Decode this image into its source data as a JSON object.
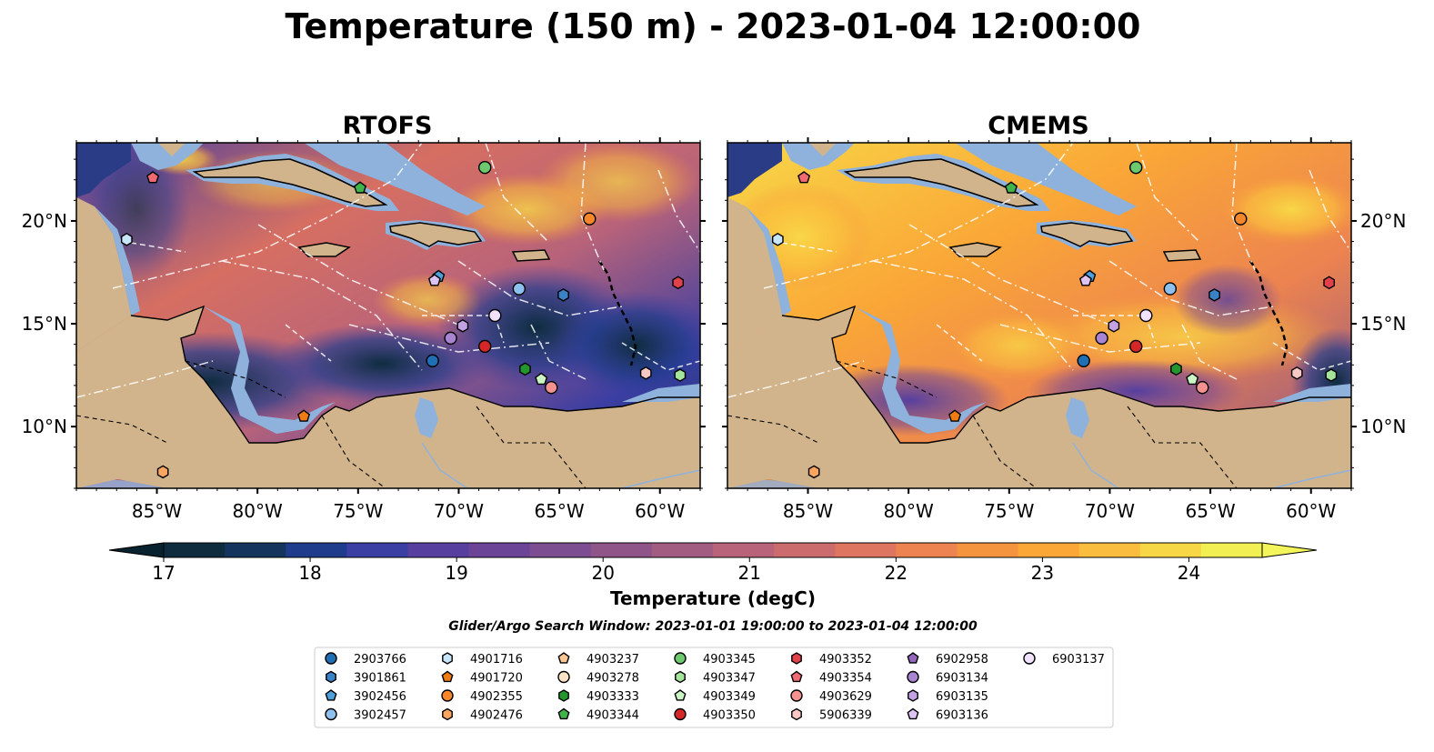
{
  "title": "Temperature (150 m) - 2023-01-04 12:00:00",
  "panels": [
    {
      "title": "RTOFS"
    },
    {
      "title": "CMEMS"
    }
  ],
  "axes": {
    "lon_ticks": [
      "85°W",
      "80°W",
      "75°W",
      "70°W",
      "65°W",
      "60°W"
    ],
    "lat_ticks": [
      "20°N",
      "15°N",
      "10°N"
    ]
  },
  "colorbar": {
    "label": "Temperature (degC)",
    "ticks": [
      "17",
      "18",
      "19",
      "20",
      "21",
      "22",
      "23",
      "24"
    ],
    "min": 17,
    "max": 24.5,
    "step": 0.5,
    "extend": "both",
    "colors": [
      "#0e2c3e",
      "#14345e",
      "#1f3c8c",
      "#3b3ea2",
      "#563f9f",
      "#6b4498",
      "#7d4d91",
      "#8f5589",
      "#a25c82",
      "#b8637a",
      "#cc6b6d",
      "#de7560",
      "#ec8350",
      "#f5943f",
      "#faa737",
      "#fbbd3d",
      "#f8d747",
      "#f1ef51"
    ],
    "under": "#08232f",
    "over": "#f4f55a"
  },
  "note": "Glider/Argo Search Window: 2023-01-01 19:00:00 to 2023-01-04 12:00:00",
  "colors": {
    "land": "#d2b48c",
    "shelf": "#8eb2dc",
    "eez_lines": "#ffffff",
    "coast": "#000000"
  },
  "legend": [
    {
      "id": "2903766",
      "marker": "circle",
      "color": "#1f6fb4"
    },
    {
      "id": "3901861",
      "marker": "hexagon",
      "color": "#3b82c4"
    },
    {
      "id": "3902456",
      "marker": "pentagon",
      "color": "#4da0d9"
    },
    {
      "id": "3902457",
      "marker": "circle",
      "color": "#8ec0ee"
    },
    {
      "id": "4901716",
      "marker": "hexagon",
      "color": "#c8e6fa"
    },
    {
      "id": "4901720",
      "marker": "pentagon",
      "color": "#ef7b12"
    },
    {
      "id": "4902355",
      "marker": "circle",
      "color": "#f5862a"
    },
    {
      "id": "4902476",
      "marker": "hexagon",
      "color": "#fba55e"
    },
    {
      "id": "4903237",
      "marker": "pentagon",
      "color": "#fbc893"
    },
    {
      "id": "4903278",
      "marker": "circle",
      "color": "#fde3c8"
    },
    {
      "id": "4903333",
      "marker": "hexagon",
      "color": "#23962e"
    },
    {
      "id": "4903344",
      "marker": "pentagon",
      "color": "#40b24a"
    },
    {
      "id": "4903345",
      "marker": "circle",
      "color": "#6cc96d"
    },
    {
      "id": "4903347",
      "marker": "hexagon",
      "color": "#a5e49b"
    },
    {
      "id": "4903349",
      "marker": "pentagon",
      "color": "#ccf5c6"
    },
    {
      "id": "4903350",
      "marker": "circle",
      "color": "#d62728"
    },
    {
      "id": "4903352",
      "marker": "hexagon",
      "color": "#e0414a"
    },
    {
      "id": "4903354",
      "marker": "pentagon",
      "color": "#ef6a73"
    },
    {
      "id": "4903629",
      "marker": "circle",
      "color": "#f3928f"
    },
    {
      "id": "5906339",
      "marker": "hexagon",
      "color": "#f9c7c4"
    },
    {
      "id": "6902958",
      "marker": "pentagon",
      "color": "#9467bd"
    },
    {
      "id": "6903134",
      "marker": "circle",
      "color": "#a984d2"
    },
    {
      "id": "6903135",
      "marker": "hexagon",
      "color": "#c3a2e3"
    },
    {
      "id": "6903136",
      "marker": "pentagon",
      "color": "#dcc3f2"
    },
    {
      "id": "6903137",
      "marker": "circle",
      "color": "#f1e1fb"
    }
  ],
  "floats": [
    {
      "id": "4903345",
      "lon": -68.7,
      "lat": 22.6
    },
    {
      "id": "4903344",
      "lon": -74.9,
      "lat": 21.6
    },
    {
      "id": "4903354",
      "lon": -85.2,
      "lat": 22.1
    },
    {
      "id": "4901716",
      "lon": -86.5,
      "lat": 19.1
    },
    {
      "id": "4902355",
      "lon": -63.5,
      "lat": 20.1
    },
    {
      "id": "3902456",
      "lon": -71.0,
      "lat": 17.3
    },
    {
      "id": "6903136",
      "lon": -71.2,
      "lat": 17.1
    },
    {
      "id": "3902457",
      "lon": -67.0,
      "lat": 16.7
    },
    {
      "id": "3901861",
      "lon": -64.8,
      "lat": 16.4
    },
    {
      "id": "4903352",
      "lon": -59.1,
      "lat": 17.0
    },
    {
      "id": "6903137",
      "lon": -68.2,
      "lat": 15.4
    },
    {
      "id": "6903135",
      "lon": -69.8,
      "lat": 14.9
    },
    {
      "id": "6903134",
      "lon": -70.4,
      "lat": 14.3
    },
    {
      "id": "4903350",
      "lon": -68.7,
      "lat": 13.9
    },
    {
      "id": "2903766",
      "lon": -71.3,
      "lat": 13.2
    },
    {
      "id": "4903333",
      "lon": -66.7,
      "lat": 12.8
    },
    {
      "id": "4903349",
      "lon": -65.9,
      "lat": 12.3
    },
    {
      "id": "4903629",
      "lon": -65.4,
      "lat": 11.9
    },
    {
      "id": "5906339",
      "lon": -60.7,
      "lat": 12.6
    },
    {
      "id": "4903347",
      "lon": -59.0,
      "lat": 12.5
    },
    {
      "id": "4901720",
      "lon": -77.7,
      "lat": 10.5
    },
    {
      "id": "4902476",
      "lon": -84.7,
      "lat": 7.8
    }
  ]
}
